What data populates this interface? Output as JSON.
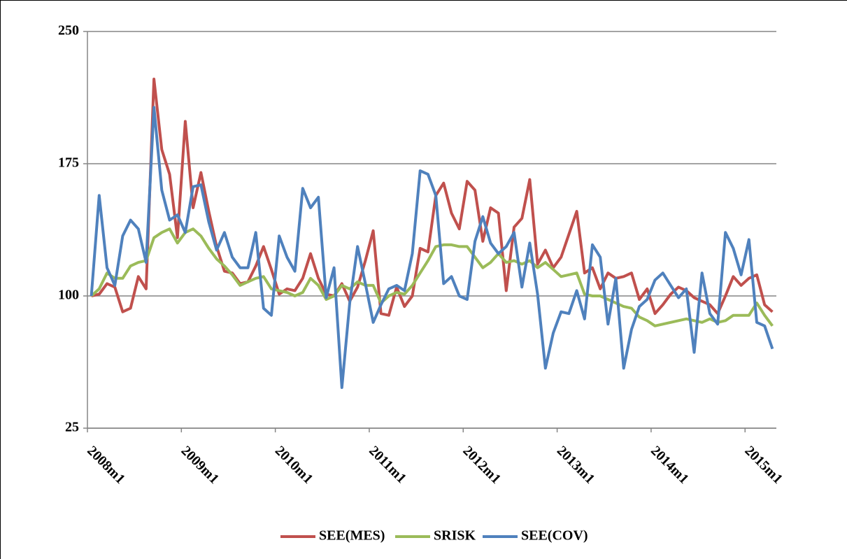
{
  "chart_data": {
    "type": "line",
    "categories": [
      "2008m1",
      null,
      null,
      null,
      null,
      null,
      null,
      null,
      null,
      null,
      null,
      null,
      "2009m1",
      null,
      null,
      null,
      null,
      null,
      null,
      null,
      null,
      null,
      null,
      null,
      "2010m1",
      null,
      null,
      null,
      null,
      null,
      null,
      null,
      null,
      null,
      null,
      null,
      "2011m1",
      null,
      null,
      null,
      null,
      null,
      null,
      null,
      null,
      null,
      null,
      null,
      "2012m1",
      null,
      null,
      null,
      null,
      null,
      null,
      null,
      null,
      null,
      null,
      null,
      "2013m1",
      null,
      null,
      null,
      null,
      null,
      null,
      null,
      null,
      null,
      null,
      null,
      "2014m1",
      null,
      null,
      null,
      null,
      null,
      null,
      null,
      null,
      null,
      null,
      null,
      "2015m1",
      null,
      null,
      null
    ],
    "series": [
      {
        "name": "SEE(MES)",
        "color": "#c0504d",
        "values": [
          100,
          101,
          107,
          105,
          91,
          93,
          111,
          104,
          223,
          183,
          169,
          133,
          199,
          150,
          170,
          148,
          128,
          114,
          113,
          107,
          108,
          117,
          128,
          115,
          101,
          104,
          103,
          110,
          124,
          110,
          101,
          100,
          107,
          97,
          105,
          120,
          137,
          90,
          89,
          105,
          94,
          100,
          127,
          125,
          157,
          164,
          147,
          138,
          165,
          160,
          131,
          150,
          147,
          103,
          139,
          144,
          166,
          118,
          126,
          116,
          122,
          135,
          148,
          113,
          116,
          104,
          113,
          110,
          111,
          113,
          98,
          104,
          90,
          95,
          101,
          105,
          103,
          99,
          97,
          95,
          90,
          100,
          111,
          106,
          110,
          112,
          95,
          91
        ]
      },
      {
        "name": "SRISK",
        "color": "#9bbb59",
        "values": [
          100,
          104,
          113,
          110,
          110,
          117,
          119,
          120,
          133,
          136,
          138,
          130,
          136,
          138,
          134,
          127,
          121,
          117,
          112,
          106,
          108,
          110,
          111,
          104,
          103,
          102,
          100,
          102,
          110,
          106,
          98,
          100,
          106,
          104,
          108,
          106,
          106,
          96,
          100,
          102,
          101,
          106,
          113,
          120,
          128,
          129,
          129,
          128,
          128,
          122,
          116,
          119,
          124,
          119,
          120,
          118,
          120,
          116,
          119,
          115,
          111,
          112,
          113,
          101,
          100,
          100,
          98,
          96,
          94,
          93,
          88,
          86,
          83,
          84,
          85,
          86,
          87,
          86,
          85,
          87,
          85,
          86,
          89,
          89,
          89,
          96,
          89,
          83
        ]
      },
      {
        "name": "SEE(COV)",
        "color": "#4f81bd",
        "values": [
          100,
          157,
          116,
          106,
          134,
          143,
          138,
          119,
          207,
          160,
          143,
          146,
          136,
          162,
          163,
          142,
          126,
          136,
          122,
          116,
          116,
          136,
          93,
          89,
          134,
          122,
          114,
          161,
          150,
          156,
          99,
          116,
          48,
          96,
          128,
          107,
          85,
          95,
          104,
          106,
          103,
          124,
          171,
          169,
          157,
          107,
          111,
          100,
          98,
          131,
          145,
          130,
          124,
          128,
          136,
          105,
          130,
          101,
          59,
          79,
          91,
          90,
          103,
          87,
          129,
          122,
          84,
          110,
          59,
          81,
          94,
          98,
          109,
          113,
          106,
          99,
          104,
          68,
          113,
          90,
          84,
          136,
          127,
          112,
          132,
          85,
          83,
          70
        ]
      }
    ],
    "ylim": [
      25,
      250
    ],
    "yticks": [
      25,
      100,
      175,
      250
    ],
    "grid": true,
    "legend": "bottom"
  }
}
